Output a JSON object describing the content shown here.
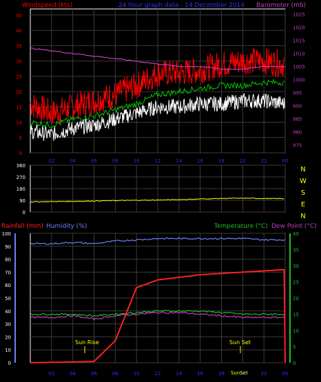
{
  "colors": {
    "bg": "#000000",
    "frame": "#ffffff",
    "grid": "#3c3c3c",
    "wind_avg": "#ffffff",
    "wind_gust": "#ff0000",
    "wind_mean": "#00c800",
    "barometer": "#c040c0",
    "wind_dir": "#ffff00",
    "rain_axis": "#ff2020",
    "humidity": "#7080ff",
    "temp": "#20c020",
    "dewpoint": "#c040c0",
    "rain": "#ff2020",
    "header_blue": "#3030ff",
    "direction_axis": "#ffff00",
    "annotation": "#ffff00"
  },
  "header": {
    "windspeed_label": "Windspeed (kts)",
    "title": "24 hour graph data - 14 December 2014",
    "barometer_label": "Barometer (mb)"
  },
  "axes_labels": {
    "rainfall": "Rainfall (mm)",
    "humidity": "Humidity (%)",
    "temperature": "Temperature (°C)",
    "dewpoint": "Dew Point (°C)"
  },
  "annotations": {
    "sunrise": "Sun Rise",
    "sunset": "Sun Set",
    "sunset_hint": "SunSet"
  },
  "chart_data": [
    {
      "type": "line",
      "panel": "wind",
      "x_ticks": [
        "02",
        "04",
        "06",
        "08",
        "10",
        "12",
        "14",
        "16",
        "18",
        "20",
        "22",
        "00"
      ],
      "y_left_ticks": [
        0,
        5,
        10,
        15,
        20,
        25,
        30,
        35,
        40,
        45
      ],
      "y_right_ticks": [
        975,
        980,
        985,
        990,
        995,
        1000,
        1005,
        1010,
        1015,
        1020,
        1025
      ],
      "ylim_left": [
        0,
        47
      ],
      "ylim_right": [
        972,
        1027
      ],
      "x": [
        0,
        2,
        4,
        6,
        8,
        10,
        12,
        14,
        16,
        18,
        20,
        22,
        24
      ],
      "series": [
        {
          "key": "gust",
          "values": [
            16,
            13,
            15,
            17,
            19,
            22,
            26,
            26,
            27,
            29,
            30,
            30,
            29
          ]
        },
        {
          "key": "mean",
          "values": [
            10,
            9,
            11,
            12,
            14,
            16,
            19,
            20,
            21,
            22,
            22,
            23,
            23
          ]
        },
        {
          "key": "avg",
          "values": [
            7,
            6,
            8,
            9,
            11,
            13,
            15,
            15,
            16,
            16,
            17,
            17,
            16
          ]
        },
        {
          "key": "barometer",
          "values": [
            1012,
            1011,
            1010,
            1009,
            1008,
            1007,
            1006,
            1005,
            1005,
            1004,
            1004,
            1005,
            1005
          ]
        }
      ]
    },
    {
      "type": "line",
      "panel": "direction",
      "y_ticks": [
        0,
        90,
        180,
        270,
        360
      ],
      "direction_labels": [
        "N",
        "W",
        "S",
        "E",
        "N"
      ],
      "ylim": [
        0,
        360
      ],
      "x": [
        0,
        2,
        4,
        6,
        8,
        10,
        12,
        14,
        16,
        18,
        20,
        22,
        24
      ],
      "series": [
        {
          "key": "wind_dir",
          "values": [
            78,
            80,
            82,
            85,
            88,
            90,
            92,
            95,
            100,
            104,
            106,
            104,
            102
          ]
        }
      ]
    },
    {
      "type": "line",
      "panel": "rain",
      "y_left_ticks": [
        0,
        10,
        20,
        30,
        40,
        50,
        60,
        70,
        80,
        90,
        100
      ],
      "y_right_ticks": [
        0,
        5,
        10,
        15,
        20,
        25,
        30,
        35,
        40
      ],
      "ylim_left": [
        0,
        100
      ],
      "ylim_right": [
        0,
        40
      ],
      "x_ticks": [
        "02",
        "04",
        "06",
        "08",
        "10",
        "12",
        "14",
        "16",
        "18",
        "20",
        "22",
        "00"
      ],
      "x": [
        0,
        2,
        4,
        6,
        8,
        10,
        12,
        14,
        16,
        18,
        20,
        22,
        24
      ],
      "series": [
        {
          "key": "humidity",
          "values": [
            92,
            92,
            93,
            92,
            94,
            95,
            96,
            96,
            96,
            96,
            96,
            95,
            95
          ]
        },
        {
          "key": "temp",
          "values": [
            15,
            15,
            15,
            14.5,
            15,
            15.5,
            16,
            16,
            16,
            15.5,
            15,
            15,
            15
          ]
        },
        {
          "key": "dewpoint",
          "values": [
            14,
            14,
            14.5,
            13.5,
            14.5,
            15,
            15.5,
            15.5,
            15,
            14.5,
            14,
            14,
            14
          ]
        },
        {
          "key": "rain",
          "values": [
            0,
            0.3,
            0.6,
            1,
            17,
            58,
            64,
            66,
            68,
            69,
            70,
            71,
            72
          ]
        }
      ]
    }
  ]
}
